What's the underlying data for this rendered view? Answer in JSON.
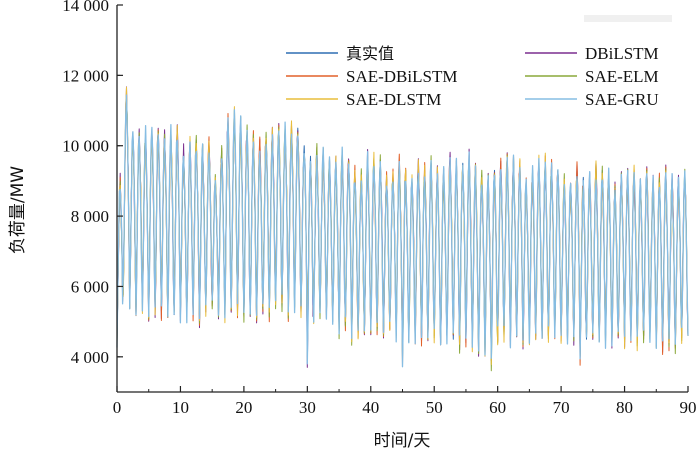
{
  "chart_data": {
    "type": "line",
    "xlabel": "时间/天",
    "ylabel": "负荷量/MW",
    "xlim": [
      0,
      90
    ],
    "ylim": [
      3000,
      14000
    ],
    "x_ticks": [
      0,
      10,
      20,
      30,
      40,
      50,
      60,
      70,
      80,
      90
    ],
    "x_tick_labels": [
      "0",
      "10",
      "20",
      "30",
      "40",
      "50",
      "60",
      "70",
      "80",
      "90"
    ],
    "y_ticks": [
      4000,
      6000,
      8000,
      10000,
      12000,
      14000
    ],
    "y_tick_labels": [
      "4 000",
      "6 000",
      "8 000",
      "10 000",
      "12 000",
      "14 000"
    ],
    "grid": false,
    "legend_position": "top-right",
    "series_note_x": "daily load cycles; values listed per day as [daily peak, daily trough] in MW",
    "daily_peak_trough": [
      [
        9000,
        4500
      ],
      [
        11500,
        6000
      ],
      [
        10400,
        5500
      ],
      [
        10300,
        5400
      ],
      [
        10300,
        5500
      ],
      [
        10400,
        5300
      ],
      [
        10400,
        5400
      ],
      [
        10200,
        5300
      ],
      [
        10300,
        5200
      ],
      [
        10400,
        5200
      ],
      [
        9800,
        5200
      ],
      [
        10000,
        5200
      ],
      [
        10100,
        5200
      ],
      [
        9900,
        5100
      ],
      [
        10000,
        5400
      ],
      [
        9000,
        5500
      ],
      [
        9800,
        5300
      ],
      [
        10700,
        5200
      ],
      [
        10800,
        5300
      ],
      [
        10600,
        5300
      ],
      [
        10400,
        5200
      ],
      [
        10200,
        5200
      ],
      [
        10000,
        5200
      ],
      [
        10200,
        5400
      ],
      [
        10400,
        5300
      ],
      [
        10400,
        5600
      ],
      [
        10400,
        5500
      ],
      [
        10500,
        5300
      ],
      [
        10500,
        5400
      ],
      [
        10000,
        5300
      ],
      [
        9700,
        4000
      ],
      [
        9800,
        5200
      ],
      [
        9700,
        5300
      ],
      [
        9500,
        5200
      ],
      [
        9500,
        5000
      ],
      [
        9700,
        4800
      ],
      [
        9600,
        4900
      ],
      [
        9200,
        4600
      ],
      [
        9100,
        4700
      ],
      [
        9600,
        4700
      ],
      [
        9600,
        4800
      ],
      [
        9600,
        4800
      ],
      [
        9100,
        4700
      ],
      [
        9100,
        4800
      ],
      [
        9500,
        4600
      ],
      [
        9300,
        4000
      ],
      [
        9000,
        4600
      ],
      [
        9400,
        4600
      ],
      [
        9300,
        4500
      ],
      [
        9500,
        4600
      ],
      [
        9200,
        4600
      ],
      [
        9200,
        4400
      ],
      [
        9600,
        4600
      ],
      [
        9400,
        4500
      ],
      [
        9500,
        4400
      ],
      [
        9600,
        4500
      ],
      [
        9300,
        4400
      ],
      [
        9100,
        4300
      ],
      [
        9000,
        4300
      ],
      [
        9300,
        3900
      ],
      [
        9400,
        4600
      ],
      [
        9600,
        4600
      ],
      [
        9500,
        4500
      ],
      [
        9400,
        4700
      ],
      [
        8900,
        4400
      ],
      [
        9200,
        4600
      ],
      [
        9500,
        4600
      ],
      [
        9500,
        4600
      ],
      [
        9400,
        4600
      ],
      [
        9300,
        4700
      ],
      [
        9000,
        4600
      ],
      [
        8900,
        4600
      ],
      [
        9300,
        4600
      ],
      [
        9100,
        4000
      ],
      [
        9100,
        4500
      ],
      [
        9300,
        4600
      ],
      [
        9300,
        4500
      ],
      [
        9200,
        4500
      ],
      [
        8800,
        4500
      ],
      [
        9100,
        4600
      ],
      [
        9100,
        4500
      ],
      [
        9200,
        4600
      ],
      [
        9000,
        4400
      ],
      [
        9300,
        4600
      ],
      [
        8900,
        4500
      ],
      [
        9000,
        4500
      ],
      [
        9200,
        4300
      ],
      [
        9000,
        4400
      ],
      [
        9000,
        4300
      ],
      [
        9100,
        4600
      ]
    ],
    "series": [
      {
        "name": "真实值",
        "color": "#2f6fb3"
      },
      {
        "name": "DBiLSTM",
        "color": "#7b2f8f"
      },
      {
        "name": "SAE-DBiLSTM",
        "color": "#e2612a"
      },
      {
        "name": "SAE-ELM",
        "color": "#8aa83a"
      },
      {
        "name": "SAE-DLSTM",
        "color": "#e8bd3c"
      },
      {
        "name": "SAE-GRU",
        "color": "#86bde3"
      }
    ]
  }
}
